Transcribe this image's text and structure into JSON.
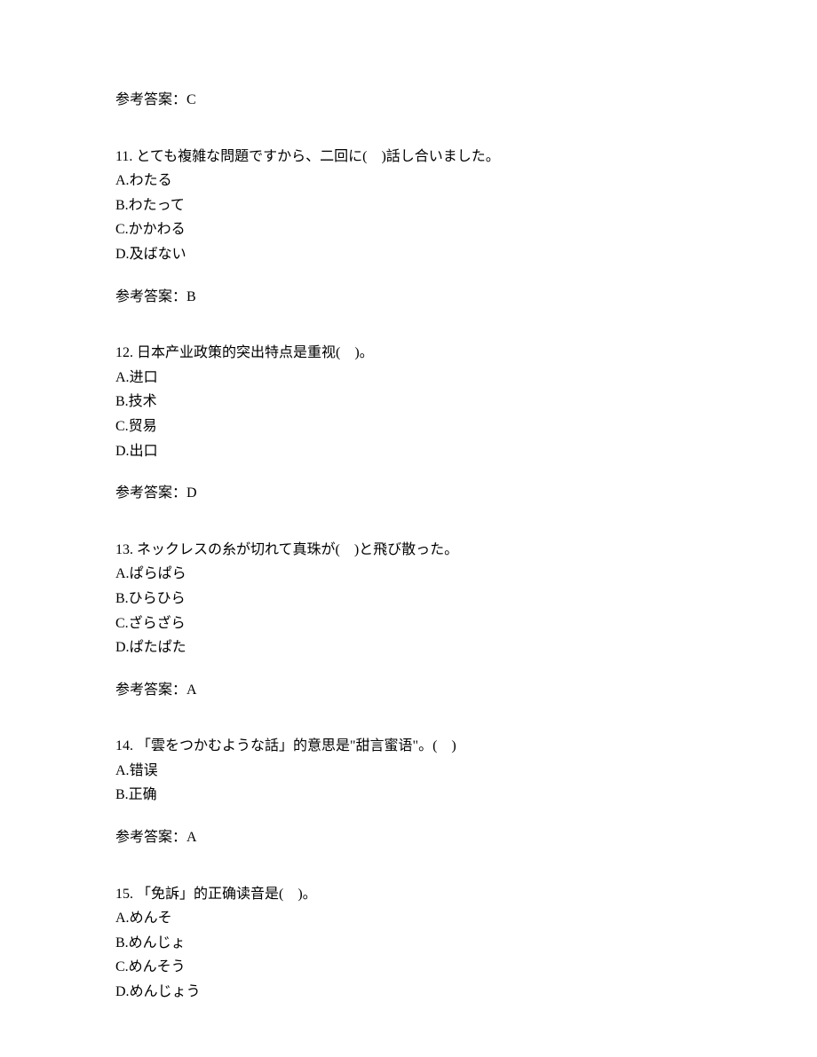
{
  "top_answer": {
    "label": "参考答案：",
    "value": "C"
  },
  "questions": [
    {
      "number": "11.",
      "text": "とても複雑な問題ですから、二回に(　)話し合いました。",
      "options": [
        {
          "letter": "A.",
          "text": "わたる"
        },
        {
          "letter": "B.",
          "text": "わたって"
        },
        {
          "letter": "C.",
          "text": "かかわる"
        },
        {
          "letter": "D.",
          "text": "及ばない"
        }
      ],
      "answer_label": "参考答案：",
      "answer_value": "B"
    },
    {
      "number": "12.",
      "text": "日本产业政策的突出特点是重视(　)。",
      "options": [
        {
          "letter": "A.",
          "text": "进口"
        },
        {
          "letter": "B.",
          "text": "技术"
        },
        {
          "letter": "C.",
          "text": "贸易"
        },
        {
          "letter": "D.",
          "text": "出口"
        }
      ],
      "answer_label": "参考答案：",
      "answer_value": "D"
    },
    {
      "number": "13.",
      "text": "ネックレスの糸が切れて真珠が(　)と飛び散った。",
      "options": [
        {
          "letter": "A.",
          "text": "ぱらぱら"
        },
        {
          "letter": "B.",
          "text": "ひらひら"
        },
        {
          "letter": "C.",
          "text": "ざらざら"
        },
        {
          "letter": "D.",
          "text": "ぱたぱた"
        }
      ],
      "answer_label": "参考答案：",
      "answer_value": "A"
    },
    {
      "number": "14.",
      "text": "「雲をつかむような話」的意思是\"甜言蜜语\"。(　)",
      "options": [
        {
          "letter": "A.",
          "text": "错误"
        },
        {
          "letter": "B.",
          "text": "正确"
        }
      ],
      "answer_label": "参考答案：",
      "answer_value": "A"
    },
    {
      "number": "15.",
      "text": "「免訴」的正确读音是(　)。",
      "options": [
        {
          "letter": "A.",
          "text": "めんそ"
        },
        {
          "letter": "B.",
          "text": "めんじょ"
        },
        {
          "letter": "C.",
          "text": "めんそう"
        },
        {
          "letter": "D.",
          "text": "めんじょう"
        }
      ],
      "answer_label": "",
      "answer_value": ""
    }
  ]
}
